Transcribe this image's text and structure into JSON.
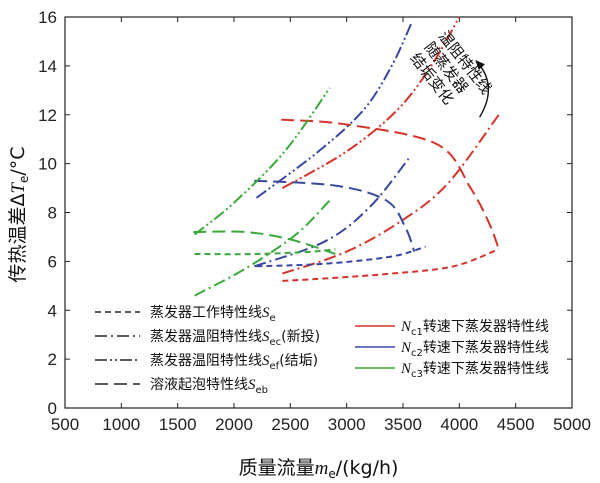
{
  "chart_data": {
    "type": "line",
    "xlabel": "质量流量m_e/(kg/h)",
    "ylabel": "传热温差ΔT_e/°C",
    "xlim": [
      500,
      5000
    ],
    "ylim": [
      0,
      16
    ],
    "x_ticks": [
      500,
      1000,
      1500,
      2000,
      2500,
      3000,
      3500,
      4000,
      4500,
      5000
    ],
    "y_ticks": [
      0,
      2,
      4,
      6,
      8,
      10,
      12,
      14,
      16
    ],
    "grid": false,
    "colors": {
      "red": "#d6332a",
      "blue": "#3848a0",
      "green": "#3aa83a",
      "black": "#222222"
    },
    "legend_style": [
      {
        "label": "蒸发器工作特性线",
        "sym": "S",
        "sub": "e",
        "tail": "",
        "dash": "dash"
      },
      {
        "label": "蒸发器温阻特性线",
        "sym": "S",
        "sub": "ec",
        "tail": "(新投)",
        "dash": "dashdot"
      },
      {
        "label": "蒸发器温阻特性线",
        "sym": "S",
        "sub": "ef",
        "tail": "(结垢)",
        "dash": "dashdotdot"
      },
      {
        "label": "溶液起泡特性线",
        "sym": "S",
        "sub": "eb",
        "tail": "",
        "dash": "longdash"
      }
    ],
    "legend_color": [
      {
        "sym": "N",
        "sub": "c1",
        "label": "转速下蒸发器特性线",
        "color": "red"
      },
      {
        "sym": "N",
        "sub": "c2",
        "label": "转速下蒸发器特性线",
        "color": "blue"
      },
      {
        "sym": "N",
        "sub": "c3",
        "label": "转速下蒸发器特性线",
        "color": "green"
      }
    ],
    "annotation": {
      "lines": [
        "温阻特性线",
        "随蒸发器",
        "结垢变化"
      ]
    },
    "series": [
      {
        "color": "red",
        "dash": "dash",
        "x": [
          2430,
          2800,
          3400,
          3950,
          4350
        ],
        "y": [
          5.2,
          5.3,
          5.5,
          5.8,
          6.5
        ]
      },
      {
        "color": "red",
        "dash": "longdash",
        "x": [
          2420,
          3000,
          3800,
          4100,
          4270,
          4350
        ],
        "y": [
          11.8,
          11.6,
          10.8,
          9.0,
          7.5,
          6.5
        ]
      },
      {
        "color": "red",
        "dash": "dashdot",
        "x": [
          2430,
          3000,
          3500,
          3900,
          4350
        ],
        "y": [
          5.5,
          6.4,
          7.7,
          9.2,
          12.0
        ]
      },
      {
        "color": "red",
        "dash": "dashdotdot",
        "x": [
          2430,
          3000,
          3450,
          3750,
          4000
        ],
        "y": [
          9.0,
          10.5,
          12.2,
          14.0,
          16.0
        ]
      },
      {
        "color": "blue",
        "dash": "dash",
        "x": [
          2200,
          2800,
          3400,
          3700
        ],
        "y": [
          5.8,
          5.9,
          6.2,
          6.6
        ]
      },
      {
        "color": "blue",
        "dash": "longdash",
        "x": [
          2180,
          2900,
          3350,
          3520,
          3600
        ],
        "y": [
          9.3,
          9.1,
          8.5,
          7.4,
          6.4
        ]
      },
      {
        "color": "blue",
        "dash": "dashdot",
        "x": [
          2180,
          2800,
          3200,
          3550
        ],
        "y": [
          5.8,
          6.8,
          8.2,
          10.2
        ]
      },
      {
        "color": "blue",
        "dash": "dashdotdot",
        "x": [
          2200,
          2750,
          3150,
          3400,
          3580
        ],
        "y": [
          8.6,
          10.5,
          12.2,
          14.0,
          15.8
        ]
      },
      {
        "color": "green",
        "dash": "dash",
        "x": [
          1650,
          2200,
          2700,
          2900
        ],
        "y": [
          6.3,
          6.3,
          6.4,
          6.5
        ]
      },
      {
        "color": "green",
        "dash": "longdash",
        "x": [
          1640,
          2100,
          2500,
          2900
        ],
        "y": [
          7.2,
          7.2,
          6.9,
          6.3
        ]
      },
      {
        "color": "green",
        "dash": "dashdot",
        "x": [
          1650,
          2100,
          2550,
          2850
        ],
        "y": [
          4.6,
          5.7,
          7.1,
          8.5
        ]
      },
      {
        "color": "green",
        "dash": "dashdotdot",
        "x": [
          1650,
          2000,
          2450,
          2850
        ],
        "y": [
          7.1,
          8.4,
          10.5,
          13.1
        ]
      }
    ]
  }
}
